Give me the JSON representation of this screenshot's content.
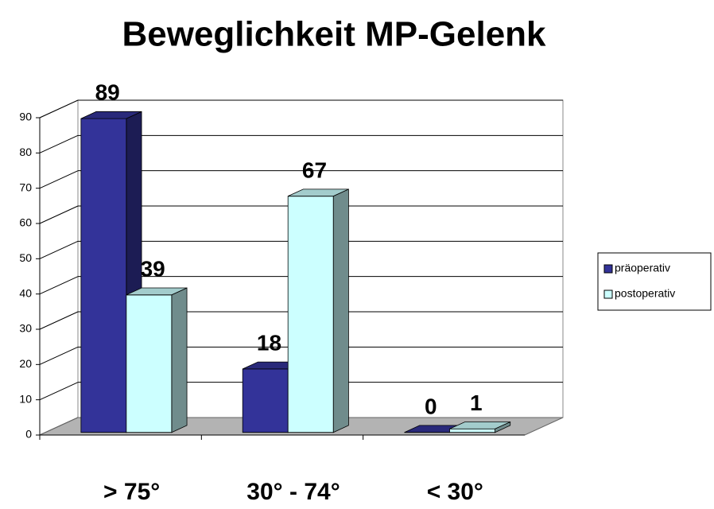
{
  "chart_data": {
    "type": "bar3d",
    "title": "Beweglichkeit MP-Gelenk",
    "categories": [
      "> 75°",
      "30° - 74°",
      "< 30°"
    ],
    "series": [
      {
        "name": "präoperativ",
        "color": "#333399",
        "values": [
          89,
          18,
          0
        ]
      },
      {
        "name": "postoperativ",
        "color": "#ccffff",
        "values": [
          39,
          67,
          1
        ]
      }
    ],
    "ylim": [
      0,
      90
    ],
    "yticks": [
      0,
      10,
      20,
      30,
      40,
      50,
      60,
      70,
      80,
      90
    ],
    "grid": true,
    "legend": "right"
  }
}
